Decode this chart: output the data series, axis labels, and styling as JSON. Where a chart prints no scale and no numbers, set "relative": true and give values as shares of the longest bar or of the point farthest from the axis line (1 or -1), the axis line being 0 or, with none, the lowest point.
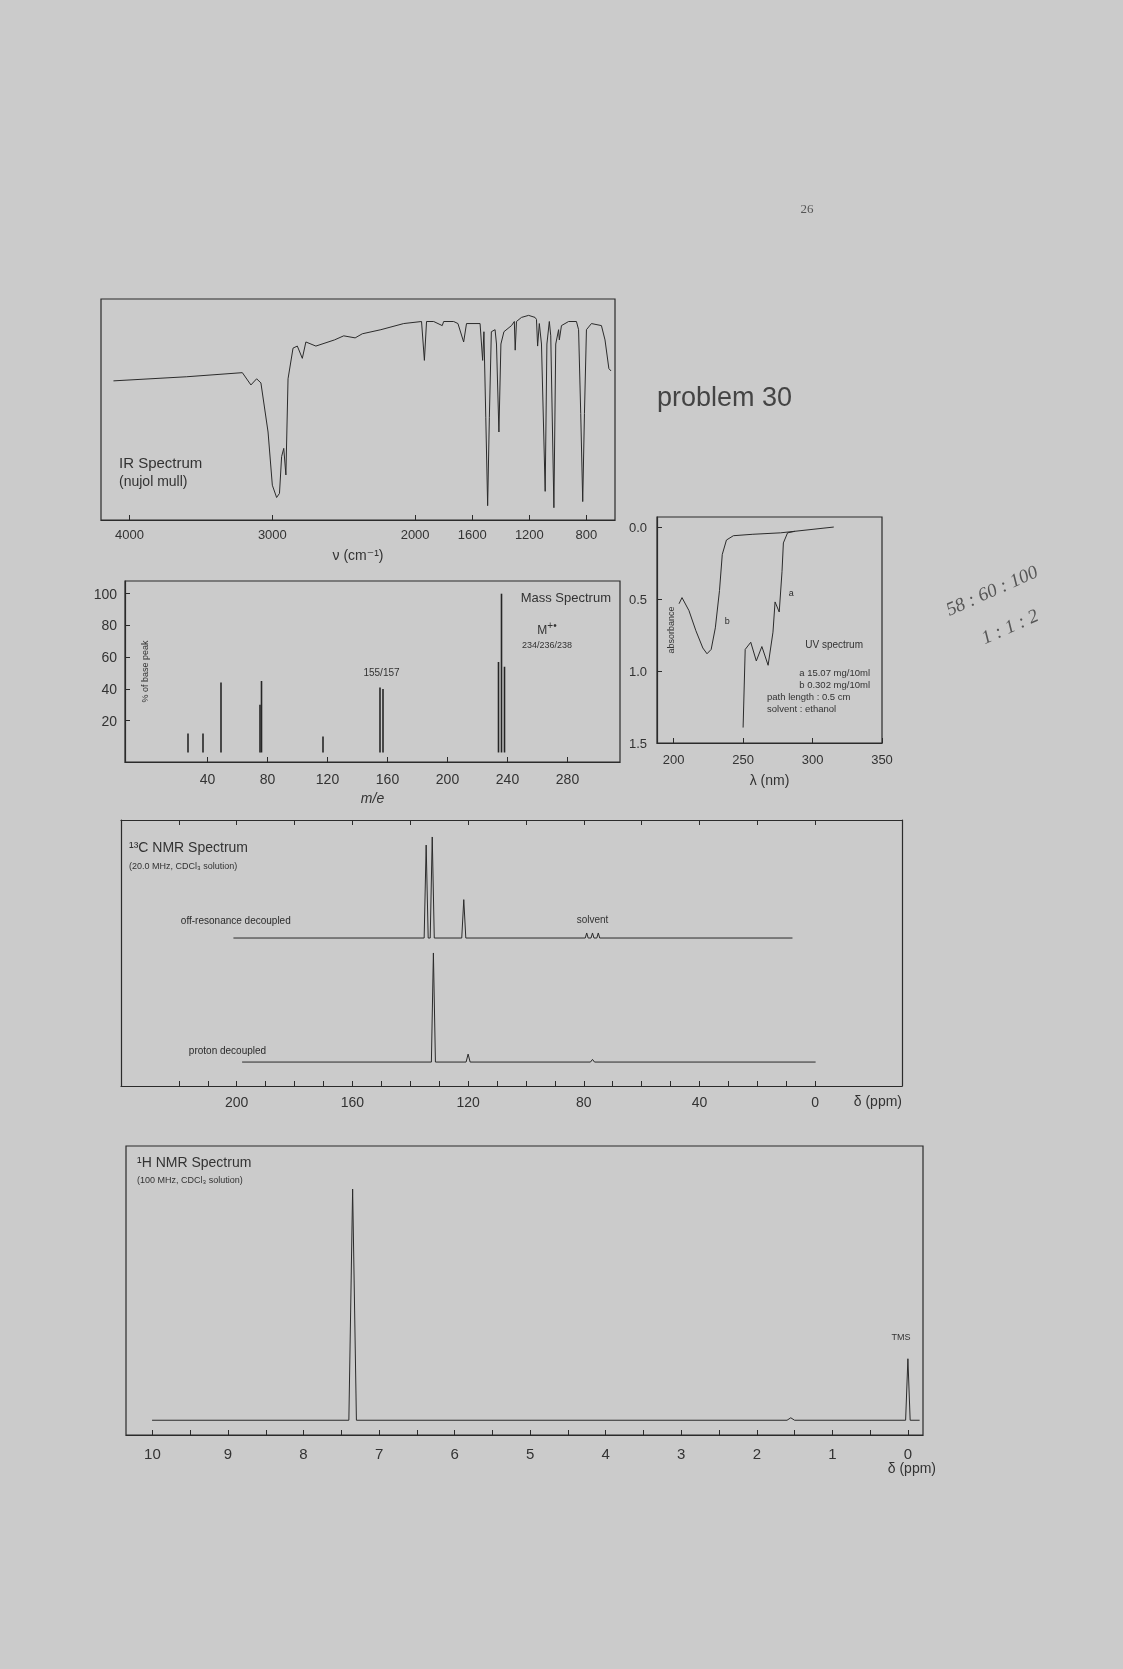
{
  "chart_data": [
    {
      "type": "line",
      "title": "IR Spectrum",
      "subtitle": "(nujol mull)",
      "xlabel": "ν (cm⁻¹)",
      "relative": true,
      "xlim": [
        4200,
        600
      ],
      "xticks": [
        4000,
        3000,
        2000,
        1600,
        1200,
        800
      ],
      "series": [
        {
          "color": "#2b2b2b",
          "x": [
            4110,
            3600,
            3210,
            3150,
            3110,
            3080,
            3030,
            3000,
            2970,
            2950,
            2935,
            2920,
            2905,
            2890,
            2855,
            2825,
            2790,
            2765,
            2695,
            2565,
            2500,
            2420,
            2370,
            2240,
            2080,
            1955,
            1935,
            1920,
            1870,
            1810,
            1800,
            1730,
            1700,
            1660,
            1640,
            1545,
            1527,
            1518,
            1505,
            1492,
            1480,
            1466,
            1440,
            1430,
            1413,
            1399,
            1378,
            1325,
            1305,
            1299,
            1290,
            1255,
            1205,
            1160,
            1150,
            1142,
            1130,
            1115,
            1089,
            1077,
            1060,
            1050,
            1028,
            1015,
            995,
            990,
            975,
            925,
            870,
            855,
            840,
            826,
            814,
            800,
            765,
            695,
            670,
            643,
            630
          ],
          "values": [
            0.68,
            0.7,
            0.72,
            0.66,
            0.69,
            0.67,
            0.43,
            0.17,
            0.11,
            0.13,
            0.31,
            0.35,
            0.22,
            0.69,
            0.84,
            0.85,
            0.79,
            0.87,
            0.85,
            0.88,
            0.9,
            0.89,
            0.91,
            0.93,
            0.96,
            0.97,
            0.78,
            0.97,
            0.97,
            0.95,
            0.97,
            0.97,
            0.96,
            0.87,
            0.96,
            0.96,
            0.78,
            0.92,
            0.5,
            0.07,
            0.5,
            0.92,
            0.93,
            0.86,
            0.43,
            0.86,
            0.92,
            0.95,
            0.97,
            0.83,
            0.97,
            0.99,
            1.0,
            0.99,
            0.98,
            0.85,
            0.96,
            0.86,
            0.14,
            0.86,
            0.97,
            0.9,
            0.06,
            0.86,
            0.93,
            0.88,
            0.95,
            0.97,
            0.97,
            0.93,
            0.52,
            0.09,
            0.52,
            0.93,
            0.96,
            0.95,
            0.88,
            0.74,
            0.73
          ]
        }
      ],
      "annotations": [
        "problem 30",
        "26"
      ]
    },
    {
      "type": "bar",
      "title": "Mass Spectrum",
      "xlabel": "m/e",
      "ylabel": "% of base peak",
      "xlim": [
        -15,
        315
      ],
      "ylim": [
        -6,
        108
      ],
      "xticks": [
        40,
        80,
        120,
        160,
        200,
        240,
        280
      ],
      "yticks": [
        20,
        40,
        60,
        80,
        100
      ],
      "series": [
        {
          "color": "#262626",
          "x": [
            27,
            37,
            49,
            75,
            76,
            117,
            155,
            157,
            234,
            236,
            238
          ],
          "values": [
            12,
            12,
            44,
            30,
            45,
            10,
            41,
            40,
            57,
            100,
            54
          ]
        }
      ],
      "annotations": [
        {
          "text": "155/157",
          "x": 156,
          "y": 41
        },
        "M$^{+•}$",
        "234/236/238"
      ]
    },
    {
      "type": "line",
      "title": "UV spectrum",
      "xlabel": "λ (nm)",
      "ylabel": "absorbance",
      "xlim": [
        188,
        350
      ],
      "ylim": [
        1.5,
        -0.07
      ],
      "xticks": [
        200,
        250,
        300,
        350
      ],
      "yticks": [
        {
          "value": 0,
          "label": "0.0"
        },
        0.5,
        {
          "value": 1,
          "label": "1.0"
        },
        1.5
      ],
      "series": [
        {
          "name": "a",
          "color": "#2b2b2b",
          "x": [
            250,
            251.5,
            255.5,
            259.5,
            263.5,
            268,
            271.5,
            273,
            276,
            278,
            279,
            282,
            287
          ],
          "values": [
            1.39,
            0.85,
            0.8,
            0.93,
            0.83,
            0.96,
            0.73,
            0.52,
            0.59,
            0.31,
            0.11,
            0.04,
            0.03
          ]
        },
        {
          "name": "b",
          "color": "#2b2b2b",
          "x": [
            204,
            206,
            211,
            216,
            221,
            224,
            227,
            230,
            233,
            235,
            238,
            243,
            257,
            277,
            296,
            315
          ],
          "values": [
            0.53,
            0.49,
            0.58,
            0.72,
            0.84,
            0.88,
            0.85,
            0.7,
            0.44,
            0.19,
            0.09,
            0.06,
            0.05,
            0.04,
            0.02,
            0.0
          ]
        }
      ],
      "annotations": [
        "a 15.07 mg/10ml",
        "b 0.302 mg/10ml",
        "path length : 0.5 cm",
        "solvent : ethanol",
        "58 : 60 : 100",
        "1 : 1 : 2"
      ]
    },
    {
      "type": "line",
      "title": "¹³C NMR Spectrum",
      "subtitle": "(20.0 MHz, CDCl₃ solution)",
      "relative": true,
      "xlim": [
        240,
        -30
      ],
      "xticks": [
        0,
        20,
        40,
        60,
        80,
        100,
        120,
        140,
        160,
        180,
        200,
        220
      ],
      "tick_labels": false,
      "series": [
        {
          "name": "off-resonance decoupled",
          "color": "#2b2b2b",
          "x": [
            201,
            135.2,
            134.5,
            133.8,
            133.1,
            132.4,
            131.7,
            122.2,
            121.5,
            120.8,
            79.5,
            79,
            78.5,
            77.5,
            77,
            76.5,
            75.5,
            75,
            74.5,
            8
          ],
          "values": [
            0,
            0,
            0.92,
            0,
            0,
            1.0,
            0,
            0,
            0.38,
            0,
            0,
            0.05,
            0,
            0,
            0.05,
            0,
            0,
            0.05,
            0,
            0
          ]
        }
      ],
      "annotations": [
        {
          "text": "solvent",
          "x": 77,
          "y": 0.05
        }
      ]
    },
    {
      "type": "line",
      "xlabel": "δ (ppm)",
      "relative": true,
      "xlim": [
        240,
        -30
      ],
      "xticks": [
        0,
        {
          "value": 10,
          "label": null
        },
        {
          "value": 20,
          "label": null
        },
        {
          "value": 30,
          "label": null
        },
        40,
        {
          "value": 50,
          "label": null
        },
        {
          "value": 60,
          "label": null
        },
        {
          "value": 70,
          "label": null
        },
        80,
        {
          "value": 90,
          "label": null
        },
        {
          "value": 100,
          "label": null
        },
        {
          "value": 110,
          "label": null
        },
        120,
        {
          "value": 130,
          "label": null
        },
        {
          "value": 140,
          "label": null
        },
        {
          "value": 150,
          "label": null
        },
        160,
        {
          "value": 170,
          "label": null
        },
        {
          "value": 180,
          "label": null
        },
        {
          "value": 190,
          "label": null
        },
        200,
        {
          "value": 210,
          "label": null
        },
        {
          "value": 220,
          "label": null
        }
      ],
      "series": [
        {
          "name": "proton decoupled",
          "color": "#2b2b2b",
          "x": [
            198,
            132.7,
            132,
            131.3,
            120.7,
            120,
            119.3,
            77.7,
            77,
            76.3,
            0
          ],
          "values": [
            0.18,
            0.18,
            1.0,
            0.18,
            0.18,
            0.24,
            0.18,
            0.18,
            0.2,
            0.18,
            0.18
          ]
        }
      ]
    },
    {
      "type": "line",
      "title": "¹H NMR Spectrum",
      "subtitle": "(100 MHz, CDCl₃ solution)",
      "xlabel": "δ (ppm)",
      "relative": true,
      "xlim": [
        10.35,
        -0.2
      ],
      "xticks": [
        0,
        {
          "value": 0.5,
          "label": null
        },
        1,
        {
          "value": 1.5,
          "label": null
        },
        2,
        {
          "value": 2.5,
          "label": null
        },
        3,
        {
          "value": 3.5,
          "label": null
        },
        4,
        {
          "value": 4.5,
          "label": null
        },
        5,
        {
          "value": 5.5,
          "label": null
        },
        6,
        {
          "value": 6.5,
          "label": null
        },
        7,
        {
          "value": 7.5,
          "label": null
        },
        8,
        {
          "value": 8.5,
          "label": null
        },
        9,
        {
          "value": 9.5,
          "label": null
        },
        10
      ],
      "series": [
        {
          "color": "#2b2b2b",
          "x": [
            10,
            7.4,
            7.35,
            7.3,
            1.6,
            1.55,
            1.5,
            0.03,
            0,
            -0.03,
            -0.15
          ],
          "values": [
            0.06,
            0.06,
            1.0,
            0.06,
            0.06,
            0.07,
            0.06,
            0.06,
            0.31,
            0.06,
            0.06
          ]
        }
      ],
      "annotations": [
        {
          "text": "TMS",
          "x": 0,
          "y": 0.31
        }
      ]
    }
  ]
}
